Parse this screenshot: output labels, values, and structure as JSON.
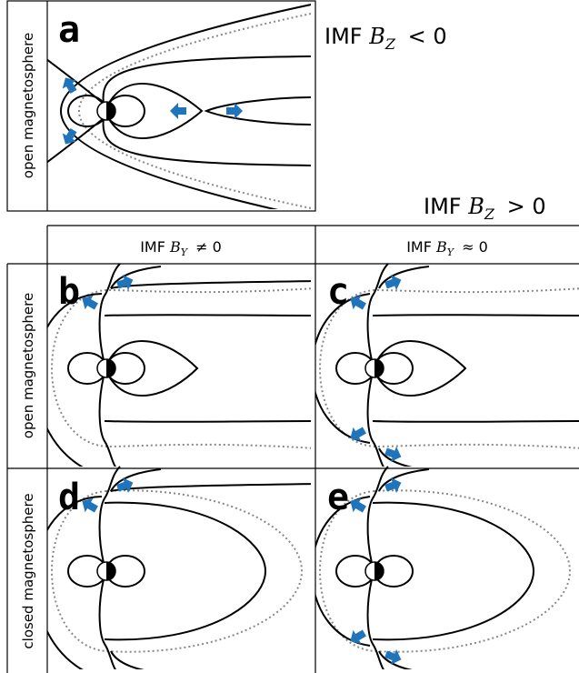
{
  "panels": [
    {
      "label": "a"
    },
    {
      "label": "b"
    },
    {
      "label": "c"
    },
    {
      "label": "d"
    },
    {
      "label": "e"
    }
  ],
  "row_labels": {
    "top": "open magnetosphere",
    "middle": "open magnetosphere",
    "bottom": "closed magnetosphere"
  },
  "conditions": {
    "bz_negative": {
      "prefix": "IMF",
      "symbol": "B",
      "subscript": "Z",
      "relation": "< 0"
    },
    "bz_positive": {
      "prefix": "IMF",
      "symbol": "B",
      "subscript": "Z",
      "relation": "> 0"
    }
  },
  "columns": [
    {
      "prefix": "IMF",
      "symbol": "B",
      "subscript": "Y",
      "relation": "≠ 0"
    },
    {
      "prefix": "IMF",
      "symbol": "B",
      "subscript": "Y",
      "relation": "≈ 0"
    }
  ]
}
